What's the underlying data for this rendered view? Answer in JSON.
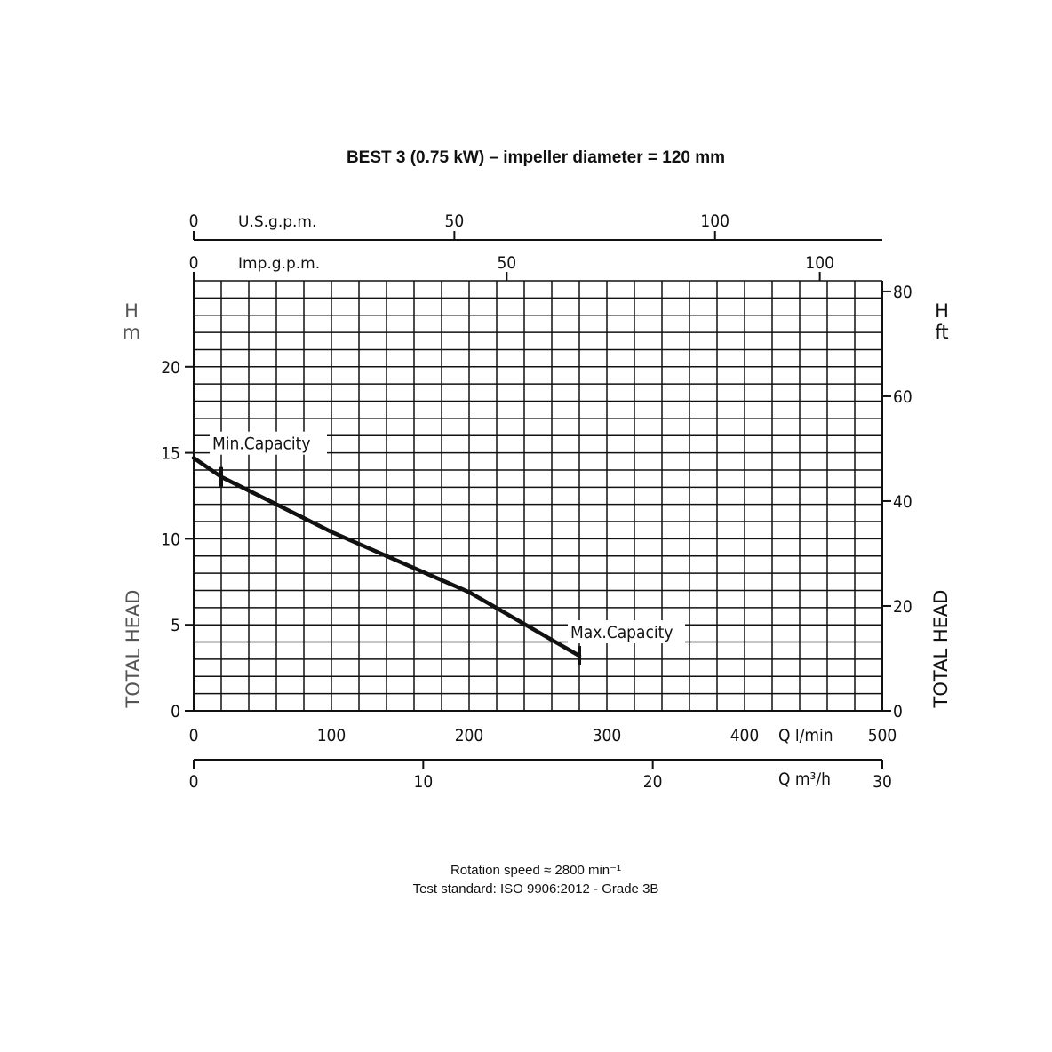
{
  "chart_data": {
    "type": "line",
    "title": "BEST 3 (0.75 kW) – impeller diameter = 120 mm",
    "xlabel": "Q l/min",
    "xlabel_secondary": "Q m³/h",
    "xlabel_top_us": "U.S.g.p.m.",
    "xlabel_top_imp": "Imp.g.p.m.",
    "ylabel_left": "TOTAL  HEAD",
    "ylabel_left_symbol": "H",
    "ylabel_left_unit": "m",
    "ylabel_right": "TOTAL  HEAD",
    "ylabel_right_symbol": "H",
    "ylabel_right_unit": "ft",
    "xlim": [
      0,
      500
    ],
    "ylim": [
      0,
      25
    ],
    "grid": true,
    "x_ticks": [
      "0",
      "100",
      "200",
      "300",
      "400",
      "500"
    ],
    "x_ticks_m3h": [
      "0",
      "10",
      "20",
      "30"
    ],
    "x_ticks_us": [
      "0",
      "50",
      "100"
    ],
    "x_ticks_imp": [
      "0",
      "50",
      "100"
    ],
    "y_ticks_m": [
      "0",
      "5",
      "10",
      "15",
      "20"
    ],
    "y_ticks_ft": [
      "0",
      "20",
      "40",
      "60",
      "80"
    ],
    "series": [
      {
        "x": [
          0,
          20,
          100,
          200,
          280
        ],
        "y": [
          14.7,
          13.6,
          10.4,
          6.9,
          3.2
        ]
      }
    ],
    "annotations": [
      {
        "label": "Min.Capacity",
        "x": 20,
        "y": 13.6
      },
      {
        "label": "Max.Capacity",
        "x": 280,
        "y": 3.2
      }
    ]
  },
  "footer": {
    "line1": "Rotation speed ≈ 2800 min⁻¹",
    "line2": "Test standard: ISO 9906:2012 - Grade 3B"
  }
}
